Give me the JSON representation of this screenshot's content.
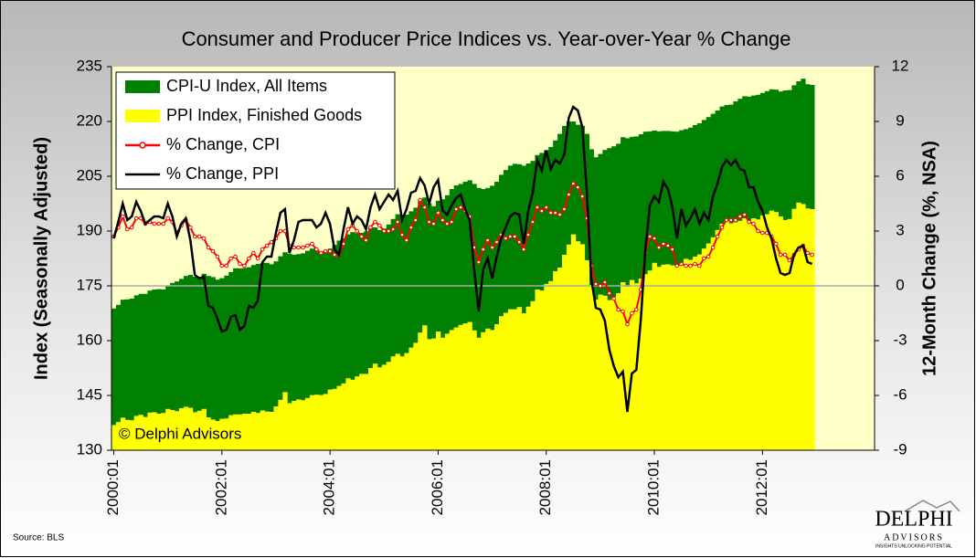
{
  "chart_data": {
    "type": "bar-line",
    "title": "Consumer and Producer Price Indices vs. Year-over-Year %  Change",
    "y_label": "Index (Seasonally Adjusted)",
    "y2_label": "12-Month Change (%, NSA)",
    "annotation": "© Delphi Advisors",
    "source": "Source: BLS",
    "logo": {
      "name": "DELPHI",
      "subtitle": "ADVISORS",
      "tagline": "INSIGHTS UNLOCKING POTENTIAL"
    },
    "ylim": [
      130,
      235
    ],
    "yticks": [
      130,
      145,
      160,
      175,
      190,
      205,
      220,
      235
    ],
    "y2lim": [
      -9,
      12
    ],
    "y2ticks": [
      -9,
      -6,
      -3,
      0,
      3,
      6,
      9,
      12
    ],
    "zero_line": true,
    "legend": "upper-left",
    "categories": [
      "2000:01",
      null,
      null,
      null,
      null,
      null,
      null,
      null,
      null,
      null,
      null,
      null,
      null,
      null,
      null,
      null,
      null,
      null,
      null,
      null,
      null,
      null,
      null,
      null,
      "2002:01",
      null,
      null,
      null,
      null,
      null,
      null,
      null,
      null,
      null,
      null,
      null,
      null,
      null,
      null,
      null,
      null,
      null,
      null,
      null,
      null,
      null,
      null,
      null,
      "2004:01",
      null,
      null,
      null,
      null,
      null,
      null,
      null,
      null,
      null,
      null,
      null,
      null,
      null,
      null,
      null,
      null,
      null,
      null,
      null,
      null,
      null,
      null,
      null,
      "2006:01",
      null,
      null,
      null,
      null,
      null,
      null,
      null,
      null,
      null,
      null,
      null,
      null,
      null,
      null,
      null,
      null,
      null,
      null,
      null,
      null,
      null,
      null,
      null,
      "2008:01",
      null,
      null,
      null,
      null,
      null,
      null,
      null,
      null,
      null,
      null,
      null,
      null,
      null,
      null,
      null,
      null,
      null,
      null,
      null,
      null,
      null,
      null,
      null,
      "2010:01",
      null,
      null,
      null,
      null,
      null,
      null,
      null,
      null,
      null,
      null,
      null,
      null,
      null,
      null,
      null,
      null,
      null,
      null,
      null,
      null,
      null,
      null,
      null,
      "2012:01",
      null,
      null,
      null,
      null,
      null,
      null,
      null,
      null,
      null,
      null,
      null
    ],
    "series": [
      {
        "name": "CPI-U Index, All Items",
        "kind": "column",
        "color": "#008000",
        "values": [
          168.8,
          169.8,
          171.2,
          171.3,
          171.5,
          172.4,
          172.8,
          172.8,
          173.7,
          174.0,
          174.1,
          174.0,
          175.1,
          175.8,
          176.2,
          176.9,
          177.7,
          178.0,
          177.5,
          177.5,
          178.3,
          177.7,
          177.4,
          176.7,
          177.1,
          177.8,
          178.8,
          179.8,
          179.8,
          179.9,
          180.1,
          180.7,
          181.0,
          181.3,
          181.3,
          180.9,
          181.7,
          183.1,
          184.2,
          183.8,
          183.5,
          183.7,
          183.9,
          184.6,
          185.2,
          185.0,
          184.5,
          184.3,
          185.2,
          186.2,
          187.4,
          188.0,
          189.1,
          189.7,
          189.4,
          189.5,
          189.9,
          190.9,
          191.0,
          190.3,
          190.7,
          191.8,
          193.3,
          194.6,
          194.4,
          194.5,
          195.4,
          196.4,
          198.8,
          199.2,
          197.6,
          196.8,
          198.3,
          198.7,
          199.8,
          201.5,
          202.5,
          202.9,
          203.5,
          203.9,
          202.9,
          201.8,
          201.5,
          201.8,
          202.4,
          203.5,
          205.4,
          206.7,
          207.9,
          208.4,
          208.3,
          207.9,
          208.5,
          209.2,
          210.8,
          211.4,
          212.2,
          213.0,
          214.8,
          216.6,
          218.8,
          220.0,
          220.0,
          219.1,
          218.8,
          216.6,
          212.4,
          210.2,
          211.1,
          212.2,
          212.7,
          213.2,
          213.9,
          215.7,
          215.4,
          215.8,
          215.9,
          216.5,
          217.2,
          217.3,
          217.5,
          217.3,
          217.4,
          217.4,
          217.3,
          217.2,
          217.6,
          217.9,
          218.3,
          219.0,
          219.5,
          220.4,
          221.2,
          222.1,
          223.0,
          224.1,
          224.5,
          224.6,
          225.5,
          226.2,
          226.9,
          226.8,
          227.1,
          227.3,
          227.8,
          228.3,
          228.8,
          228.7,
          228.2,
          228.5,
          228.6,
          229.9,
          231.0,
          231.7,
          230.2,
          230.0
        ]
      },
      {
        "name": "PPI Index, Finished Goods",
        "kind": "column",
        "color": "#ffff00",
        "values": [
          136.9,
          137.7,
          138.9,
          138.3,
          138.2,
          139.4,
          139.7,
          139.1,
          140.3,
          140.4,
          140.0,
          140.2,
          141.3,
          141.0,
          140.7,
          141.5,
          141.9,
          141.6,
          140.4,
          140.8,
          141.3,
          139.0,
          138.4,
          138.0,
          138.6,
          138.7,
          139.6,
          139.8,
          139.8,
          140.0,
          140.0,
          140.5,
          140.2,
          140.9,
          140.6,
          140.5,
          142.0,
          143.8,
          145.9,
          142.9,
          143.5,
          143.9,
          143.7,
          144.3,
          145.1,
          145.2,
          145.1,
          145.4,
          146.6,
          146.8,
          147.6,
          148.3,
          149.7,
          149.3,
          150.2,
          150.9,
          150.9,
          152.5,
          153.7,
          152.7,
          153.4,
          154.2,
          155.7,
          156.4,
          155.7,
          156.6,
          158.1,
          159.4,
          162.2,
          164.2,
          160.4,
          160.6,
          162.5,
          160.8,
          161.9,
          162.9,
          163.6,
          164.3,
          164.7,
          165.1,
          162.8,
          160.8,
          162.3,
          163.3,
          162.9,
          164.5,
          166.7,
          167.6,
          168.6,
          168.6,
          169.2,
          167.5,
          169.3,
          170.8,
          174.0,
          173.7,
          175.5,
          176.3,
          179.0,
          180.0,
          183.5,
          186.3,
          189.1,
          187.2,
          186.4,
          182.0,
          175.2,
          171.2,
          172.6,
          172.3,
          171.1,
          172.0,
          173.0,
          176.0,
          174.8,
          176.6,
          175.7,
          177.0,
          178.2,
          179.2,
          181.3,
          180.2,
          180.8,
          180.9,
          180.6,
          180.5,
          181.1,
          182.4,
          182.1,
          183.0,
          183.6,
          185.2,
          186.6,
          188.3,
          190.3,
          192.0,
          192.7,
          192.1,
          192.4,
          192.8,
          193.5,
          192.9,
          193.5,
          193.2,
          194.3,
          194.6,
          195.6,
          195.2,
          194.0,
          193.0,
          193.3,
          196.1,
          197.8,
          197.4,
          196.2,
          196.0
        ]
      },
      {
        "name": "% Change, CPI",
        "kind": "line-marker",
        "axis": "y2",
        "color": "#ff0000",
        "values": [
          2.7,
          3.2,
          3.8,
          3.1,
          3.2,
          3.7,
          3.7,
          3.4,
          3.5,
          3.4,
          3.4,
          3.4,
          3.7,
          3.5,
          2.9,
          3.3,
          3.6,
          3.2,
          2.7,
          2.7,
          2.6,
          2.1,
          1.9,
          1.6,
          1.1,
          1.1,
          1.5,
          1.6,
          1.2,
          1.1,
          1.5,
          1.8,
          1.5,
          2.0,
          2.2,
          2.4,
          2.6,
          3.0,
          3.0,
          2.2,
          2.1,
          2.1,
          2.1,
          2.2,
          2.3,
          2.0,
          1.8,
          1.9,
          1.9,
          1.7,
          1.7,
          2.3,
          3.1,
          3.3,
          3.0,
          2.7,
          2.5,
          3.2,
          3.5,
          3.3,
          3.0,
          3.0,
          3.1,
          3.5,
          2.8,
          2.5,
          3.2,
          3.6,
          4.7,
          4.3,
          3.5,
          3.4,
          4.0,
          3.6,
          3.4,
          3.5,
          4.2,
          4.3,
          4.1,
          3.8,
          2.1,
          1.3,
          2.0,
          2.5,
          2.1,
          2.4,
          2.8,
          2.6,
          2.7,
          2.7,
          2.4,
          2.0,
          2.8,
          3.5,
          4.3,
          4.1,
          4.3,
          4.0,
          4.0,
          3.9,
          4.2,
          5.0,
          5.6,
          5.4,
          4.9,
          3.7,
          1.1,
          0.1,
          0.0,
          0.2,
          -0.4,
          -0.7,
          -1.3,
          -1.4,
          -2.1,
          -1.5,
          -1.3,
          -0.2,
          1.8,
          2.7,
          2.6,
          2.1,
          2.3,
          2.2,
          2.0,
          1.1,
          1.2,
          1.1,
          1.1,
          1.2,
          1.1,
          1.5,
          1.6,
          2.1,
          2.7,
          3.2,
          3.6,
          3.6,
          3.6,
          3.8,
          3.9,
          3.5,
          3.4,
          3.0,
          2.9,
          2.9,
          2.7,
          2.3,
          1.7,
          1.7,
          1.4,
          1.7,
          2.0,
          2.2,
          1.8,
          1.7
        ]
      },
      {
        "name": "% Change, PPI",
        "kind": "line",
        "axis": "y2",
        "color": "#000000",
        "values": [
          2.6,
          3.5,
          4.5,
          3.6,
          3.8,
          4.6,
          4.1,
          3.4,
          3.6,
          3.8,
          3.8,
          3.7,
          4.5,
          3.8,
          2.7,
          3.4,
          3.7,
          2.5,
          0.6,
          0.4,
          0.5,
          -1.1,
          -1.2,
          -1.8,
          -2.5,
          -2.4,
          -1.7,
          -1.6,
          -2.4,
          -2.2,
          -1.1,
          -1.2,
          -0.8,
          1.3,
          1.6,
          1.6,
          2.9,
          4.0,
          4.2,
          1.8,
          2.5,
          3.5,
          3.6,
          3.6,
          3.6,
          3.2,
          3.4,
          4.0,
          3.4,
          2.0,
          1.7,
          3.1,
          4.3,
          3.4,
          3.8,
          3.6,
          3.1,
          4.3,
          5.0,
          4.2,
          4.6,
          5.0,
          4.7,
          5.2,
          3.6,
          4.2,
          5.1,
          5.2,
          5.9,
          5.5,
          4.5,
          5.4,
          5.8,
          4.1,
          3.9,
          4.4,
          4.8,
          5.0,
          4.2,
          3.6,
          0.9,
          -1.4,
          0.9,
          1.5,
          0.4,
          1.6,
          2.6,
          3.2,
          3.8,
          4.0,
          3.9,
          2.3,
          4.1,
          5.1,
          6.9,
          6.3,
          7.4,
          6.4,
          6.9,
          6.7,
          7.2,
          9.2,
          9.8,
          9.6,
          8.7,
          5.2,
          0.4,
          -1.2,
          -1.3,
          -1.9,
          -3.5,
          -4.4,
          -5.0,
          -4.7,
          -6.9,
          -4.8,
          -4.6,
          -1.8,
          2.0,
          4.4,
          4.9,
          4.6,
          5.7,
          5.3,
          4.3,
          2.6,
          4.2,
          3.3,
          3.7,
          4.2,
          3.4,
          4.0,
          3.6,
          4.9,
          5.6,
          6.5,
          6.9,
          6.6,
          6.9,
          6.4,
          6.3,
          5.4,
          5.4,
          4.6,
          4.1,
          3.2,
          2.6,
          1.5,
          0.7,
          0.6,
          0.7,
          1.7,
          2.1,
          2.2,
          1.3,
          1.2
        ]
      }
    ]
  }
}
